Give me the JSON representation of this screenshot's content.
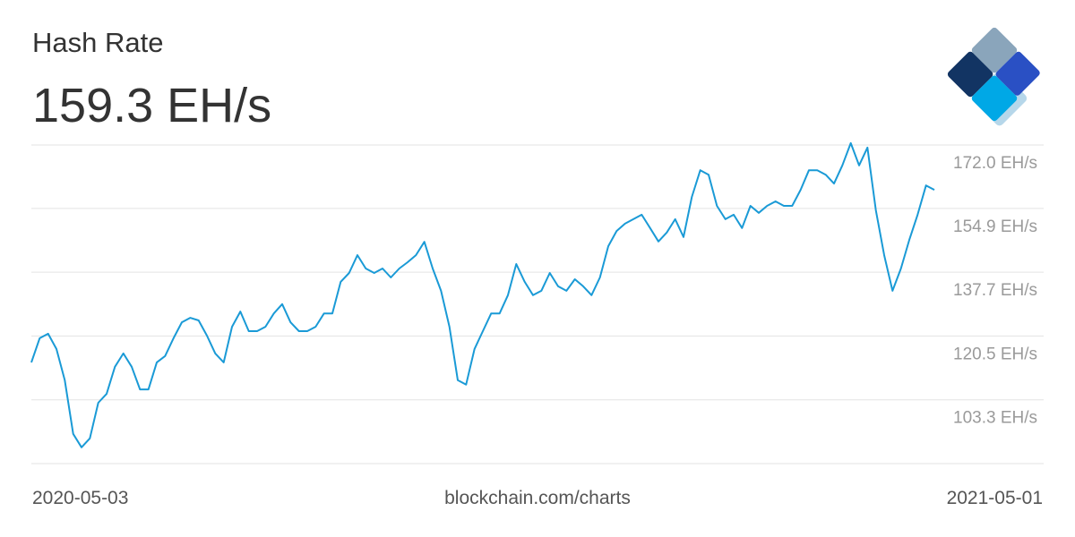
{
  "chart_data": {
    "type": "line",
    "title": "Hash Rate",
    "current_value": "159.3 EH/s",
    "date_start": "2020-05-03",
    "date_end": "2021-05-01",
    "source": "blockchain.com/charts",
    "series": [
      {
        "name": "Hash Rate",
        "color": "#1a9ad6",
        "values": [
          113.4,
          119.9,
          121.1,
          117.0,
          108.6,
          94.1,
          90.5,
          92.9,
          102.5,
          104.9,
          112.2,
          115.8,
          112.2,
          106.1,
          106.1,
          113.4,
          115.1,
          119.9,
          124.2,
          125.4,
          124.7,
          120.6,
          115.8,
          113.4,
          123.0,
          127.1,
          121.8,
          121.8,
          123.0,
          126.6,
          129.1,
          124.2,
          121.8,
          121.8,
          123.0,
          126.6,
          126.6,
          135.1,
          137.5,
          142.3,
          138.7,
          137.5,
          138.7,
          136.3,
          138.7,
          140.4,
          142.3,
          145.9,
          138.7,
          132.7,
          123.0,
          108.6,
          107.4,
          117.0,
          121.8,
          126.6,
          126.6,
          131.5,
          139.9,
          135.1,
          131.5,
          132.7,
          137.5,
          133.9,
          132.7,
          135.8,
          133.9,
          131.5,
          136.3,
          144.7,
          148.8,
          150.8,
          152.0,
          153.2,
          149.6,
          146.0,
          148.4,
          152.0,
          147.2,
          158.0,
          165.2,
          164.0,
          155.6,
          152.0,
          153.2,
          149.6,
          155.6,
          153.7,
          155.6,
          156.8,
          155.6,
          155.6,
          159.9,
          165.2,
          165.2,
          164.0,
          161.6,
          166.5,
          172.5,
          166.5,
          171.3,
          154.4,
          142.3,
          132.7,
          138.7,
          146.4,
          153.2,
          161.1,
          159.9
        ]
      }
    ],
    "ylim": [
      86.1,
      172.0
    ],
    "yticks": [
      {
        "value": 172.0,
        "label": "172.0 EH/s"
      },
      {
        "value": 154.9,
        "label": "154.9 EH/s"
      },
      {
        "value": 137.7,
        "label": "137.7 EH/s"
      },
      {
        "value": 120.5,
        "label": "120.5 EH/s"
      },
      {
        "value": 103.3,
        "label": "103.3 EH/s"
      }
    ],
    "grid": true
  }
}
